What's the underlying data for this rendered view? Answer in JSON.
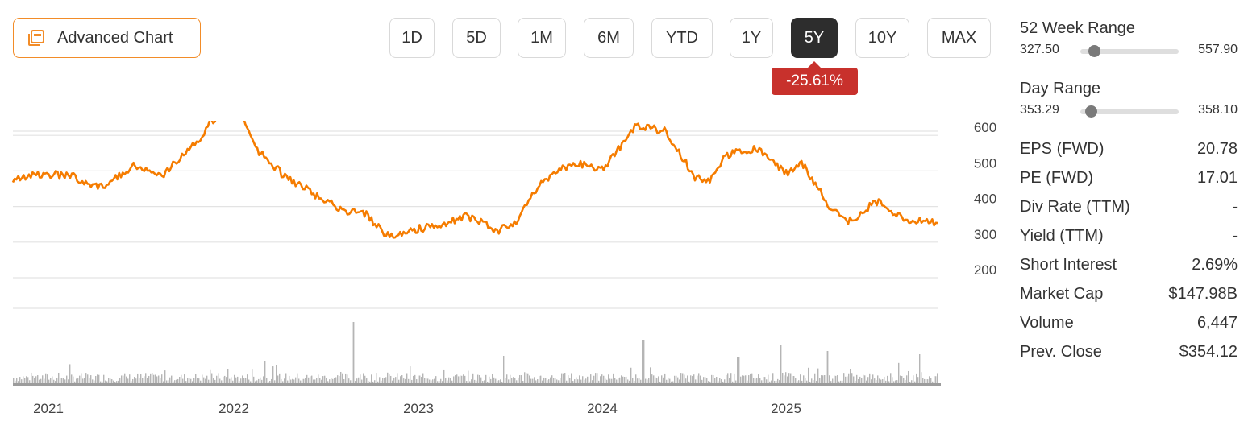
{
  "advanced_chart": {
    "label": "Advanced Chart",
    "icon": "chart-window-icon",
    "accent": "#f28c28"
  },
  "ranges": [
    "1D",
    "5D",
    "1M",
    "6M",
    "YTD",
    "1Y",
    "5Y",
    "10Y",
    "MAX"
  ],
  "active_range": "5Y",
  "change": {
    "text": "-25.61%",
    "color": "#c8312c"
  },
  "week52": {
    "title": "52 Week Range",
    "low": "327.50",
    "high": "557.90"
  },
  "day_range": {
    "title": "Day Range",
    "low": "353.29",
    "high": "358.10"
  },
  "stats": [
    {
      "key": "EPS (FWD)",
      "value": "20.78"
    },
    {
      "key": "PE (FWD)",
      "value": "17.01"
    },
    {
      "key": "Div Rate (TTM)",
      "value": "-"
    },
    {
      "key": "Yield (TTM)",
      "value": "-"
    },
    {
      "key": "Short Interest",
      "value": "2.69%"
    },
    {
      "key": "Market Cap",
      "value": "$147.98B"
    },
    {
      "key": "Volume",
      "value": "6,447"
    },
    {
      "key": "Prev. Close",
      "value": "$354.12"
    }
  ],
  "chart_data": {
    "type": "line",
    "title": "",
    "xlabel": "",
    "ylabel": "",
    "x_ticks": [
      "2021",
      "2022",
      "2023",
      "2024",
      "2025"
    ],
    "y_ticks": [
      200,
      300,
      400,
      500,
      600
    ],
    "ylim": [
      150,
      650
    ],
    "grid": true,
    "line_color": "#f57c00",
    "volume_color": "#b5b5b5",
    "series": [
      {
        "x": [
          "2020-09",
          "2020-11",
          "2021-01",
          "2021-03",
          "2021-05",
          "2021-07",
          "2021-09",
          "2021-10",
          "2021-11",
          "2021-12",
          "2022-01",
          "2022-03",
          "2022-05",
          "2022-07",
          "2022-08",
          "2022-09",
          "2022-10",
          "2022-11",
          "2023-01",
          "2023-03",
          "2023-05",
          "2023-06",
          "2023-08",
          "2023-10",
          "2023-12",
          "2024-02",
          "2024-04",
          "2024-06",
          "2024-07",
          "2024-08",
          "2024-10",
          "2024-12",
          "2025-01",
          "2025-03",
          "2025-04",
          "2025-06",
          "2025-08",
          "2025-10"
        ],
        "values": [
          460,
          480,
          470,
          440,
          500,
          480,
          560,
          620,
          650,
          660,
          550,
          470,
          420,
          370,
          380,
          330,
          300,
          320,
          330,
          360,
          320,
          330,
          460,
          510,
          490,
          610,
          600,
          470,
          460,
          530,
          550,
          480,
          510,
          380,
          340,
          400,
          350,
          340
        ]
      }
    ],
    "volume_note": "daily volume bars beneath price line, with spikes near 2022-09 and 2024-04"
  }
}
